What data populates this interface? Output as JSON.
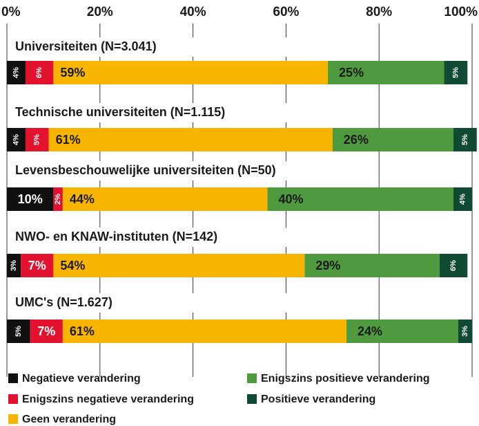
{
  "chart_data": {
    "type": "stacked_bar_horizontal",
    "categories": [
      "Universiteiten (N=3.041)",
      "Technische universiteiten (N=1.115)",
      "Levensbeschouwelijke universiteiten (N=50)",
      "NWO- en KNAW-instituten (N=142)",
      "UMC's (N=1.627)"
    ],
    "series": [
      {
        "name": "Negatieve verandering",
        "color": "#111111",
        "values": [
          4,
          4,
          10,
          3,
          5
        ],
        "value_labels": [
          "4%",
          "4%",
          "10%",
          "3%",
          "5%"
        ]
      },
      {
        "name": "Enigszins negatieve verandering",
        "color": "#e3122f",
        "values": [
          6,
          5,
          2,
          7,
          7
        ],
        "value_labels": [
          "6%",
          "5%",
          "2%",
          "7%",
          "7%"
        ]
      },
      {
        "name": "Geen verandering",
        "color": "#f7b500",
        "values": [
          59,
          61,
          44,
          54,
          61
        ],
        "value_labels": [
          "59%",
          "61%",
          "44%",
          "54%",
          "61%"
        ]
      },
      {
        "name": "Enigszins positieve verandering",
        "color": "#4f9a3f",
        "values": [
          25,
          26,
          40,
          29,
          24
        ],
        "value_labels": [
          "25%",
          "26%",
          "40%",
          "29%",
          "24%"
        ]
      },
      {
        "name": "Positieve verandering",
        "color": "#0f4a33",
        "values": [
          5,
          5,
          4,
          6,
          3
        ],
        "value_labels": [
          "5%",
          "5%",
          "4%",
          "6%",
          "3%"
        ]
      }
    ],
    "xlim": [
      0,
      100
    ],
    "xticks": [
      {
        "value": 0,
        "label": "0%"
      },
      {
        "value": 20,
        "label": "20%"
      },
      {
        "value": 40,
        "label": "40%"
      },
      {
        "value": 60,
        "label": "60%"
      },
      {
        "value": 80,
        "label": "80%"
      },
      {
        "value": 100,
        "label": "100%"
      }
    ],
    "grid": true
  }
}
